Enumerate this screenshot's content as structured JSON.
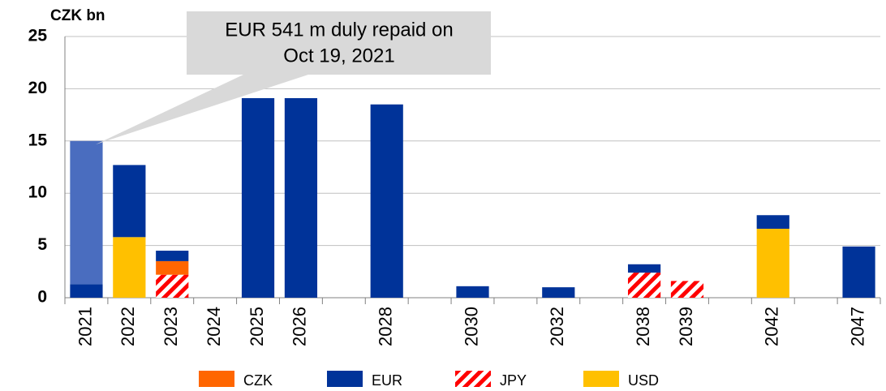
{
  "chart_data": {
    "type": "stacked_bar",
    "title": "CZK bn",
    "annotation": [
      "EUR 541 m duly repaid on",
      "Oct 19, 2021"
    ],
    "categories": [
      "2021",
      "2022",
      "2023",
      "2024",
      "2025",
      "2026",
      null,
      "2028",
      null,
      "2030",
      null,
      "2032",
      null,
      "2038",
      "2039",
      null,
      "2042",
      null,
      "2047"
    ],
    "series": [
      {
        "name": "JPY",
        "color": "#ff0000",
        "hatch": true,
        "values": [
          null,
          null,
          2.2,
          null,
          null,
          null,
          null,
          null,
          null,
          null,
          null,
          null,
          null,
          2.4,
          1.6,
          null,
          null,
          null,
          null
        ]
      },
      {
        "name": "CZK",
        "color": "#ff6600",
        "values": [
          null,
          null,
          1.3,
          null,
          null,
          null,
          null,
          null,
          null,
          null,
          null,
          null,
          null,
          null,
          null,
          null,
          null,
          null,
          null
        ]
      },
      {
        "name": "USD",
        "color": "#ffc000",
        "values": [
          null,
          5.8,
          null,
          null,
          null,
          null,
          null,
          null,
          null,
          null,
          null,
          null,
          null,
          null,
          null,
          null,
          6.6,
          null,
          null
        ]
      },
      {
        "name": "EUR",
        "color": "#003399",
        "values": [
          1.3,
          6.9,
          1.0,
          null,
          19.1,
          19.1,
          null,
          18.5,
          null,
          1.1,
          null,
          1.0,
          null,
          0.8,
          null,
          null,
          1.3,
          null,
          4.9
        ]
      },
      {
        "color": "#4a6dbf",
        "values": [
          13.7,
          null,
          null,
          null,
          null,
          null,
          null,
          null,
          null,
          null,
          null,
          null,
          null,
          null,
          null,
          null,
          null,
          null,
          null
        ]
      }
    ],
    "ylim": [
      0,
      25
    ],
    "yticks": [
      0,
      5,
      10,
      15,
      20,
      25
    ],
    "grid": true
  }
}
